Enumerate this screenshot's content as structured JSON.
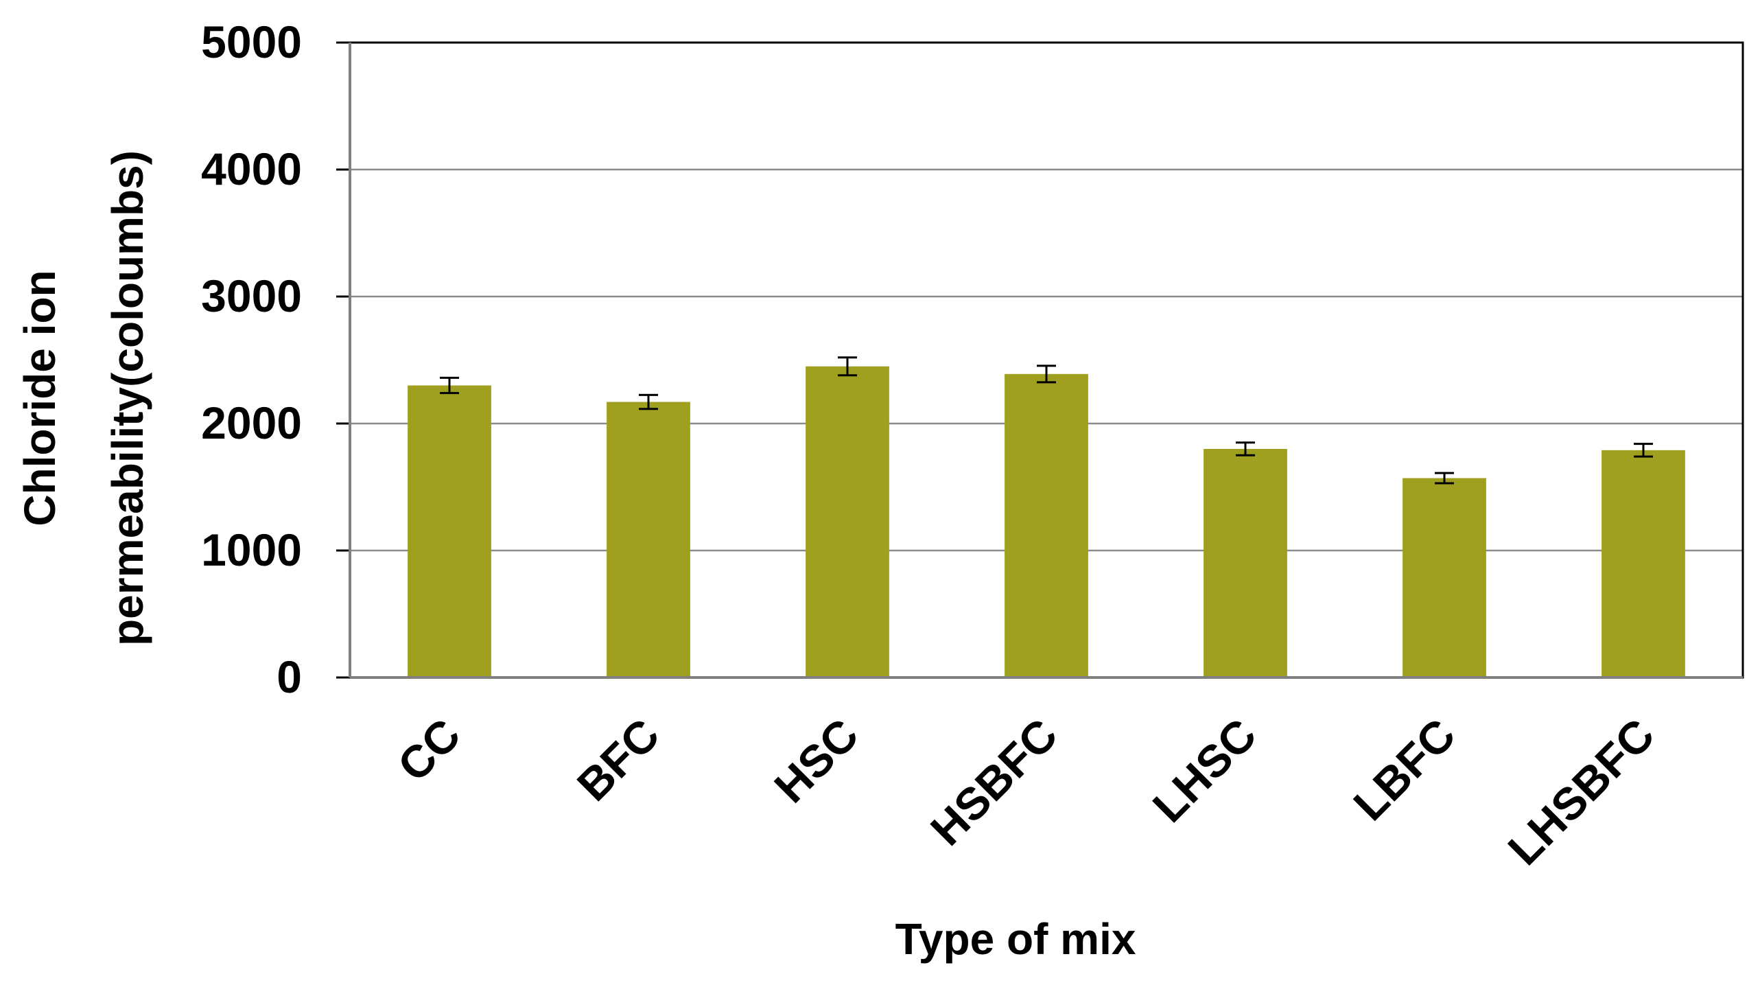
{
  "chart_data": {
    "type": "bar",
    "title": "",
    "xlabel": "Type of mix",
    "ylabel_lines": [
      "Chloride ion",
      "permeability(coloumbs)"
    ],
    "categories": [
      "CC",
      "BFC",
      "HSC",
      "HSBFC",
      "LHSC",
      "LBFC",
      "LHSBFC"
    ],
    "values": [
      2300,
      2170,
      2450,
      2390,
      1800,
      1570,
      1790
    ],
    "errors": [
      60,
      55,
      70,
      65,
      50,
      40,
      50
    ],
    "ylim": [
      0,
      5000
    ],
    "yticks": [
      "0",
      "1000",
      "2000",
      "3000",
      "4000",
      "5000"
    ],
    "grid": true,
    "colors": {
      "bar": "#A0A020",
      "grid": "#8c8c8c",
      "axis": "#000000",
      "error_bar": "#000000"
    }
  }
}
